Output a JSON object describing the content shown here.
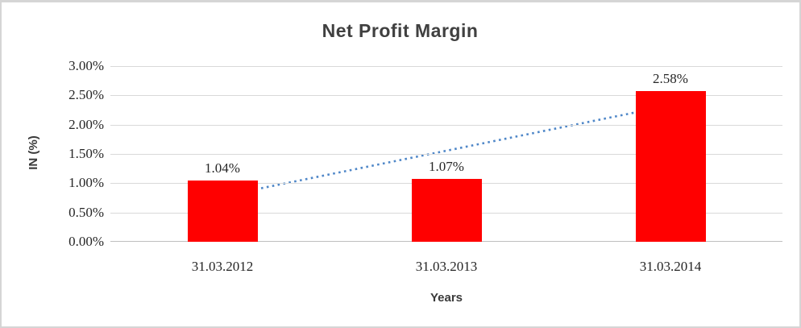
{
  "chart_data": {
    "type": "bar",
    "title": "Net Profit Margin",
    "xlabel": "Years",
    "ylabel": "IN (%)",
    "categories": [
      "31.03.2012",
      "31.03.2013",
      "31.03.2014"
    ],
    "values": [
      1.04,
      1.07,
      2.58
    ],
    "data_labels": [
      "1.04%",
      "1.07%",
      "2.58%"
    ],
    "ylim": [
      0,
      3
    ],
    "y_ticks": [
      {
        "value": 3.0,
        "label": "3.00%"
      },
      {
        "value": 2.5,
        "label": "2.50%"
      },
      {
        "value": 2.0,
        "label": "2.00%"
      },
      {
        "value": 1.5,
        "label": "1.50%"
      },
      {
        "value": 1.0,
        "label": "1.00%"
      },
      {
        "value": 0.5,
        "label": "0.50%"
      },
      {
        "value": 0.0,
        "label": "0.00%"
      }
    ],
    "grid": "horizontal",
    "legend": "none",
    "bar_color": "#ff0000",
    "trendline": {
      "type": "linear",
      "style": "dotted",
      "color": "#4f87c8",
      "start_value": 0.78,
      "end_value": 2.33
    }
  }
}
